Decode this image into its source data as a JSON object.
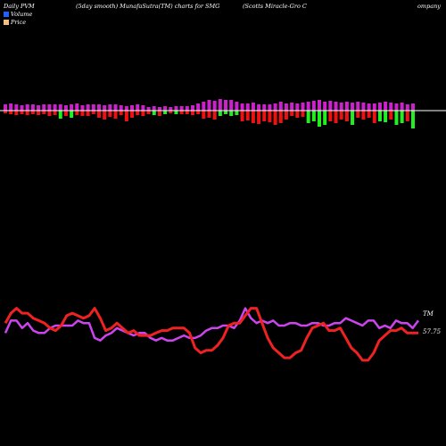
{
  "header": {
    "left": "Daily PVM",
    "mid": "(5day smooth) MunafaSutra(TM) charts for SMG",
    "right_a": "(Scotts Miracle-Gro  C",
    "right_b": "ompany"
  },
  "legend": {
    "volume_label": "Volume",
    "price_label": "Price",
    "volume_color": "#2060ff",
    "price_color": "#f0c080"
  },
  "colors": {
    "background": "#000000",
    "baseline": "#ffffff",
    "bar_magenta": "#cc22cc",
    "bar_red": "#ee1111",
    "bar_green": "#22ee22",
    "line_purple": "#cc44ee",
    "line_red": "#ee2222"
  },
  "labels": {
    "purple_end": "TM",
    "red_end": "57.75"
  },
  "chart_data": [
    {
      "type": "bar",
      "title": "",
      "n": 75,
      "up": [
        7,
        8,
        7,
        6,
        7,
        7,
        6,
        7,
        7,
        7,
        7,
        6,
        7,
        8,
        6,
        7,
        7,
        7,
        6,
        7,
        7,
        6,
        5,
        6,
        7,
        6,
        4,
        5,
        4,
        5,
        4,
        5,
        5,
        5,
        6,
        8,
        10,
        12,
        11,
        13,
        12,
        12,
        10,
        8,
        8,
        9,
        7,
        7,
        7,
        8,
        10,
        8,
        9,
        8,
        9,
        10,
        11,
        12,
        10,
        11,
        10,
        9,
        10,
        9,
        10,
        9,
        8,
        8,
        9,
        10,
        9,
        8,
        9,
        7,
        8
      ],
      "down": [
        3,
        4,
        5,
        4,
        5,
        4,
        5,
        4,
        6,
        5,
        9,
        6,
        8,
        5,
        6,
        6,
        4,
        8,
        10,
        7,
        9,
        5,
        12,
        8,
        5,
        6,
        4,
        5,
        6,
        4,
        3,
        4,
        4,
        4,
        5,
        4,
        9,
        8,
        10,
        6,
        4,
        6,
        5,
        12,
        11,
        14,
        15,
        12,
        13,
        16,
        14,
        10,
        6,
        8,
        7,
        14,
        12,
        18,
        16,
        12,
        14,
        10,
        12,
        16,
        8,
        10,
        8,
        14,
        12,
        13,
        10,
        16,
        14,
        12,
        20
      ],
      "down_color": [
        "r",
        "r",
        "r",
        "r",
        "r",
        "r",
        "r",
        "r",
        "r",
        "r",
        "g",
        "r",
        "g",
        "r",
        "r",
        "r",
        "r",
        "r",
        "r",
        "r",
        "r",
        "r",
        "r",
        "r",
        "r",
        "r",
        "r",
        "g",
        "r",
        "g",
        "r",
        "g",
        "r",
        "r",
        "r",
        "r",
        "r",
        "r",
        "r",
        "g",
        "g",
        "g",
        "g",
        "r",
        "r",
        "r",
        "r",
        "r",
        "r",
        "r",
        "r",
        "r",
        "r",
        "r",
        "r",
        "g",
        "g",
        "g",
        "g",
        "r",
        "r",
        "r",
        "r",
        "g",
        "r",
        "r",
        "r",
        "r",
        "g",
        "g",
        "r",
        "g",
        "g",
        "r",
        "g"
      ]
    },
    {
      "type": "line",
      "title": "",
      "series": [
        {
          "name": "",
          "values": [
            60,
            65,
            65,
            62,
            64,
            61,
            60,
            60,
            62,
            63,
            63,
            63,
            63,
            65,
            64,
            64,
            58,
            57,
            59,
            60,
            62,
            61,
            60,
            59,
            60,
            60,
            58,
            57,
            58,
            57,
            57,
            58,
            59,
            58,
            58,
            59,
            61,
            62,
            62,
            63,
            63,
            62,
            65,
            70,
            66,
            64,
            65,
            64,
            65,
            63,
            63,
            64,
            64,
            63,
            63,
            64,
            64,
            63,
            63,
            64,
            64,
            66,
            65,
            64,
            63,
            65,
            65,
            62,
            63,
            62,
            65,
            64,
            64,
            62,
            65
          ]
        },
        {
          "name": "",
          "values": [
            64,
            68,
            70,
            68,
            68,
            66,
            65,
            64,
            62,
            61,
            63,
            67,
            68,
            67,
            66,
            67,
            70,
            66,
            61,
            62,
            64,
            62,
            60,
            61,
            59,
            59,
            59,
            60,
            61,
            61,
            62,
            62,
            62,
            60,
            54,
            52,
            53,
            53,
            55,
            58,
            63,
            64,
            64,
            67,
            70,
            70,
            64,
            58,
            54,
            52,
            50,
            50,
            52,
            53,
            58,
            62,
            63,
            64,
            61,
            61,
            62,
            58,
            54,
            52,
            49,
            49,
            52,
            57,
            59,
            61,
            61,
            62,
            60,
            60,
            60
          ]
        }
      ]
    }
  ]
}
